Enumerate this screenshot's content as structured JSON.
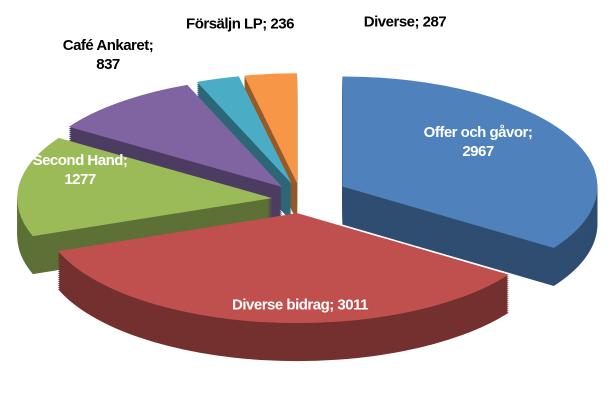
{
  "chart_data": {
    "type": "pie",
    "categories": [
      "Offer och gåvor;",
      "Diverse bidrag;",
      "Second Hand;",
      "Café Ankaret;",
      "Försäljn LP;",
      "Diverse;"
    ],
    "values": [
      2967,
      3011,
      1277,
      837,
      236,
      287
    ],
    "colors": [
      "#4f81bd",
      "#c0504d",
      "#9bbb59",
      "#8064a2",
      "#4bacc6",
      "#f79646"
    ]
  }
}
